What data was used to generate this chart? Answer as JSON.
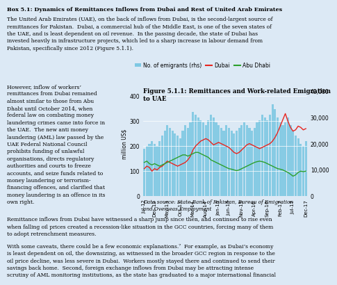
{
  "page_bg": "#dce9f5",
  "box_title": "Box 5.1: Dynamics of Remittances Inflows from Dubai and Rest of United Arab Emirates",
  "box_text1": "The United Arab Emirates (UAE), on the back of inflows from Dubai, is the second-largest source of\nremittances for Pakistan.  Dubai, a commercial hub of the Middle East, is one of the seven states of\nthe UAE, and is least dependent on oil revenue.  In the passing decade, the state of Dubai has\ninvested heavily in infrastructure projects, which led to a sharp increase in labour demand from\nPakistan, specifically since 2012 (Figure 5.1.1).",
  "left_text": "However, inflow of workers’\nremittances from Dubai remained\nalmost similar to those from Abu\nDhabi until October 2014, when\nfederal law on combating money\nlaundering crimes came into force in\nthe UAE.  The new anti money\nlaundering (AML) law passed by the\nUAE Federal National Council\nprohibits funding of unlawful\norganisations, directs regulatory\nauthorities and courts to freeze\naccounts, and seize funds related to\nmoney laundering or terrorism-\nfinancing offences, and clarified that\nmoney laundering is an offence in its\nown right.",
  "bottom_text1": "Remittance inflows from Dubai have witnessed a sharp jump since then, and continued to rise even\nwhen falling oil prices created a recession-like situation in the GCC countries, forcing many of them\nto adopt retrenchment measures.",
  "bottom_text2": "With some caveats, there could be a few economic explanations.⁷  For example, as Dubai’s economy\nis least dependent on oil, the downsizing, as witnessed in the broader GCC region in response to the\noil price decline, was less severe in Dubai.  Workers mostly stayed there and continued to send their\nsavings back home.  Second, foreign exchange inflows from Dubai may be attracting intense\nscrutiny of AML monitoring institutions, as the state has graduated to a major international financial",
  "chart_title": "Figure 5.1.1: Remittances and Work-related Emigration\nto UAE",
  "ylabel_left": "million US$",
  "source_text": "Data source: State Bank of Pakistan, Bureau of Emigration\nand Overseas Employment",
  "bar_color": "#7ec8e3",
  "line_dubai_color": "#e8251f",
  "line_abudhabi_color": "#2ca02c",
  "x_labels": [
    "Jul-12",
    "Dec-12",
    "May-13",
    "Oct-13",
    "Mar-14",
    "Aug-14",
    "Jan-15",
    "Jun-15",
    "Nov-15",
    "Apr-16",
    "Sep-16",
    "Feb-17",
    "Jul-17",
    "Dec-17"
  ],
  "ylim_left": [
    0,
    420
  ],
  "ylim_right": [
    0,
    40000
  ],
  "yticks_left": [
    0,
    100,
    200,
    300,
    400
  ],
  "yticks_right": [
    0,
    10000,
    20000,
    30000,
    40000
  ],
  "bar_values": [
    18000,
    19000,
    20000,
    21000,
    20000,
    19000,
    21000,
    23000,
    25000,
    27000,
    26000,
    25000,
    24000,
    23000,
    22000,
    25000,
    27000,
    26000,
    28000,
    32000,
    31000,
    30000,
    29000,
    28000,
    27000,
    29000,
    31000,
    30000,
    28000,
    27000,
    26000,
    25000,
    27000,
    26000,
    25000,
    24000,
    25000,
    26000,
    27000,
    28000,
    27000,
    26000,
    25000,
    26000,
    28000,
    29000,
    31000,
    30000,
    29000,
    31000,
    35000,
    33000,
    30000,
    28000,
    27000,
    28000,
    30000,
    27000,
    25000,
    23000,
    22000,
    20000,
    19000,
    21000
  ],
  "dubai_values": [
    110,
    120,
    115,
    100,
    110,
    105,
    115,
    120,
    130,
    140,
    135,
    130,
    125,
    120,
    125,
    130,
    135,
    145,
    160,
    185,
    200,
    210,
    220,
    225,
    230,
    225,
    215,
    205,
    210,
    215,
    210,
    205,
    200,
    195,
    185,
    175,
    170,
    175,
    185,
    195,
    205,
    210,
    205,
    200,
    195,
    190,
    195,
    200,
    205,
    210,
    220,
    235,
    255,
    280,
    305,
    330,
    300,
    275,
    260,
    265,
    280,
    275,
    265,
    270
  ],
  "abudhabi_values": [
    135,
    140,
    130,
    125,
    130,
    125,
    120,
    125,
    130,
    135,
    140,
    145,
    150,
    155,
    160,
    165,
    165,
    160,
    165,
    170,
    175,
    175,
    170,
    165,
    160,
    155,
    145,
    140,
    135,
    130,
    125,
    120,
    115,
    110,
    108,
    105,
    102,
    105,
    110,
    115,
    120,
    125,
    130,
    135,
    138,
    140,
    138,
    135,
    130,
    125,
    120,
    115,
    110,
    108,
    105,
    100,
    95,
    88,
    80,
    85,
    95,
    100,
    98,
    100
  ],
  "n_points": 64
}
